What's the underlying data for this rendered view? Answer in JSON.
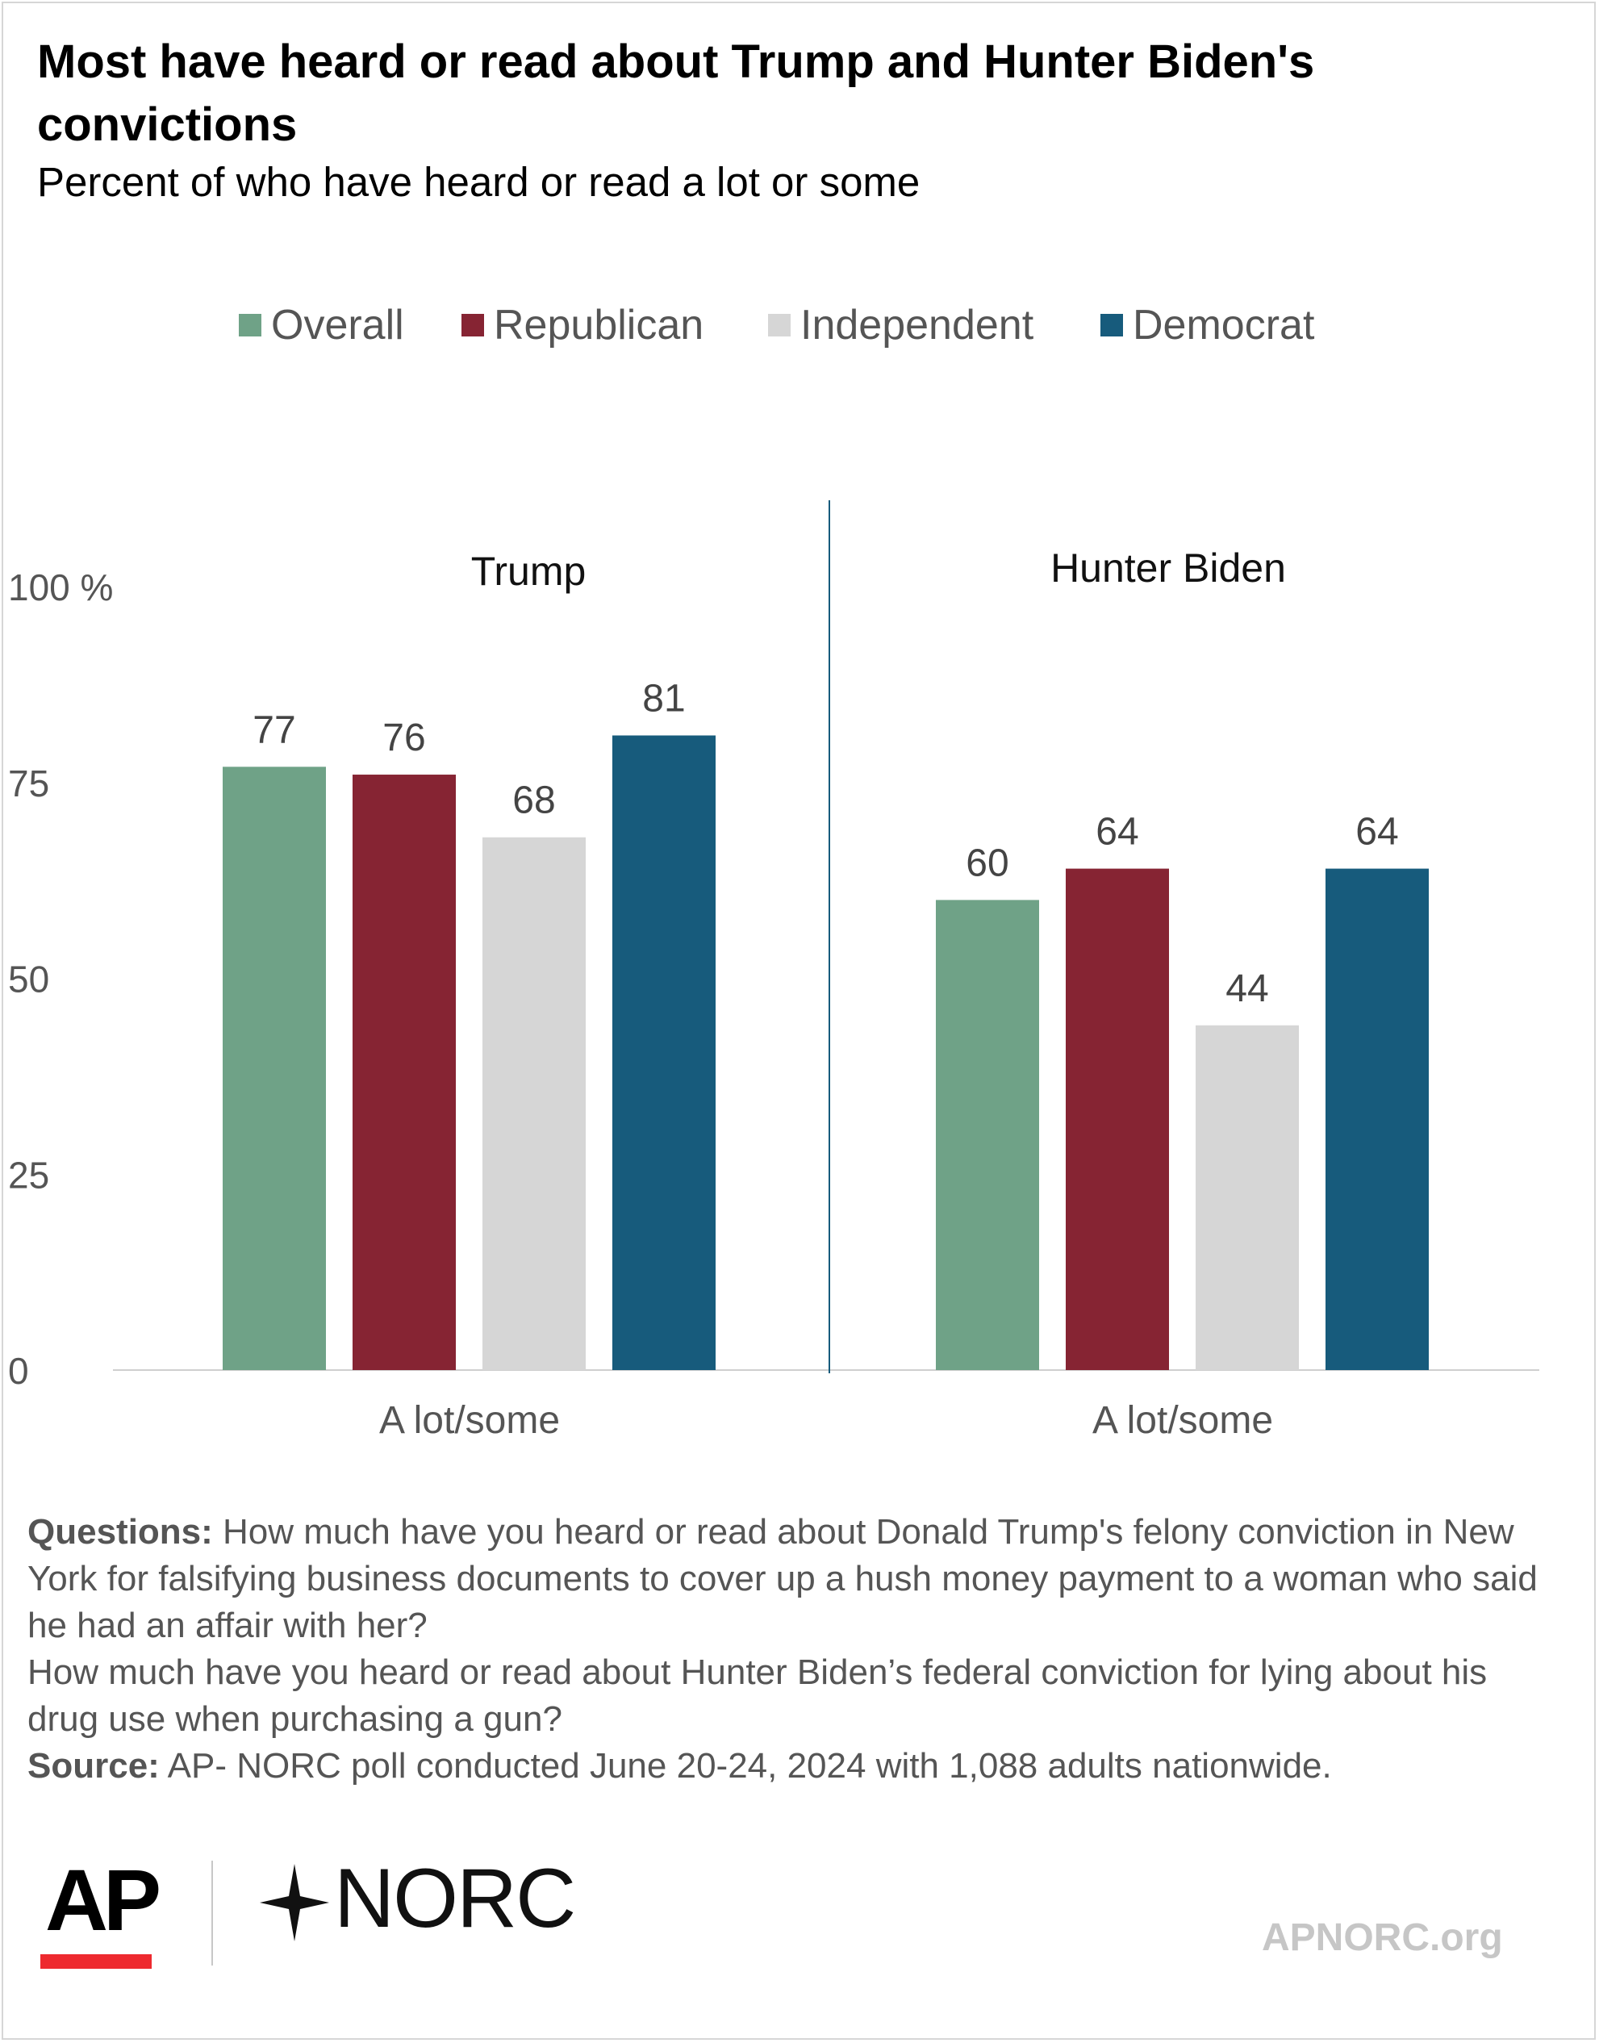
{
  "title": "Most have heard or read about Trump and Hunter Biden's convictions",
  "subtitle": "Percent of who have heard or read a lot or some",
  "legend": [
    {
      "label": "Overall",
      "color": "#6fa287"
    },
    {
      "label": "Republican",
      "color": "#862433"
    },
    {
      "label": "Independent",
      "color": "#d6d6d6"
    },
    {
      "label": "Democrat",
      "color": "#175b7c"
    }
  ],
  "chart_data": {
    "type": "bar",
    "panels": [
      {
        "title": "Trump",
        "categories": [
          "A lot/some"
        ],
        "values": [
          77,
          76,
          68,
          81
        ]
      },
      {
        "title": "Hunter Biden",
        "categories": [
          "A lot/some"
        ],
        "values": [
          60,
          64,
          44,
          64
        ]
      }
    ],
    "series": [
      {
        "name": "Overall",
        "color": "#6fa287"
      },
      {
        "name": "Republican",
        "color": "#862433"
      },
      {
        "name": "Independent",
        "color": "#d6d6d6"
      },
      {
        "name": "Democrat",
        "color": "#175b7c"
      }
    ],
    "y_ticks": [
      "0",
      "25",
      "50",
      "75",
      "100 %"
    ],
    "ylim": [
      0,
      100
    ],
    "grid": false,
    "legend_position": "top"
  },
  "notes": {
    "questions_label": "Questions:",
    "question1": "How much have you heard or read about Donald Trump's felony conviction in New York for falsifying business documents to cover up a hush money payment to a woman who said he had an affair with her?",
    "question2": "How much have you heard or read about Hunter Biden’s federal conviction for lying about his drug use when purchasing a gun?",
    "source_label": "Source:",
    "source": "AP- NORC poll conducted June 20-24, 2024 with 1,088 adults nationwide."
  },
  "logos": {
    "ap": "AP",
    "norc": "NORC",
    "site": "APNORC.org"
  }
}
